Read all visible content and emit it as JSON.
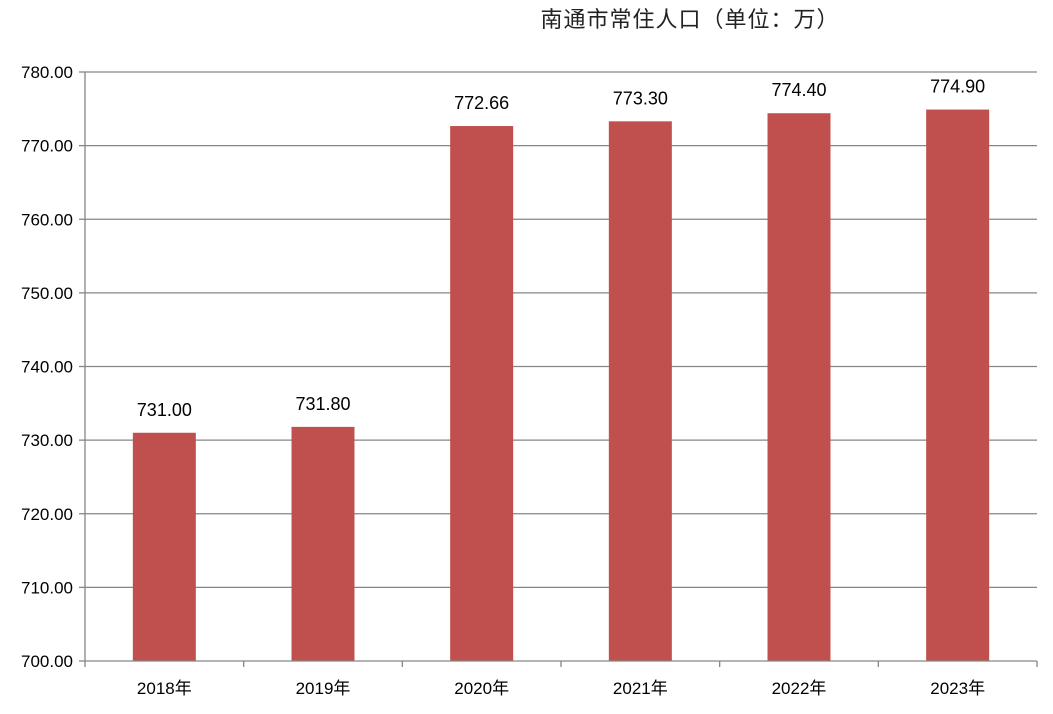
{
  "chart_data": {
    "type": "bar",
    "title": "南通市常住人口（单位：万）",
    "categories": [
      "2018年",
      "2019年",
      "2020年",
      "2021年",
      "2022年",
      "2023年"
    ],
    "values": [
      731.0,
      731.8,
      772.66,
      773.3,
      774.4,
      774.9
    ],
    "data_labels": [
      "731.00",
      "731.80",
      "772.66",
      "773.30",
      "774.40",
      "774.90"
    ],
    "ylim": [
      700,
      780
    ],
    "y_ticks": [
      700,
      710,
      720,
      730,
      740,
      750,
      760,
      770,
      780
    ],
    "y_tick_labels": [
      "700.00",
      "710.00",
      "720.00",
      "730.00",
      "740.00",
      "750.00",
      "760.00",
      "770.00",
      "780.00"
    ],
    "xlabel": "",
    "ylabel": "",
    "grid": true,
    "legend": "none",
    "bar_color": "#c0504d",
    "grid_color": "#868686"
  }
}
